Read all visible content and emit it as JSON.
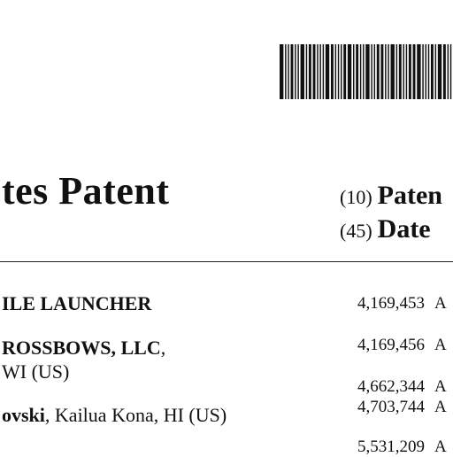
{
  "header": {
    "barcode_bars": [
      3,
      1,
      1,
      2,
      1,
      1,
      3,
      1,
      2,
      2,
      1,
      1,
      1,
      3,
      2,
      1,
      1,
      1,
      2,
      3,
      1,
      2,
      1,
      1,
      3,
      1,
      1,
      2,
      2,
      1,
      1,
      3,
      1,
      2,
      1,
      1,
      2,
      2,
      3,
      1,
      1,
      1,
      2,
      1,
      3,
      2,
      1,
      1
    ],
    "title": "tes Patent",
    "inid_10_code": "(10)",
    "inid_10_label": "Paten",
    "inid_45_code": "(45)",
    "inid_45_label": "Date"
  },
  "left_column": {
    "title_line": "ILE LAUNCHER",
    "applicant_name": "ROSSBOWS, LLC",
    "applicant_punct": ",",
    "applicant_location": "WI (US)",
    "inventor_name": "ovski",
    "inventor_location": ", Kailua Kona, HI (US)"
  },
  "references": [
    {
      "number": "4,169,453",
      "suffix": "A"
    },
    {
      "number": "4,169,456",
      "suffix": "A"
    },
    {
      "number": "4,662,344",
      "suffix": "A"
    },
    {
      "number": "4,703,744",
      "suffix": "A"
    },
    {
      "number": "5,531,209",
      "suffix": "A"
    }
  ]
}
